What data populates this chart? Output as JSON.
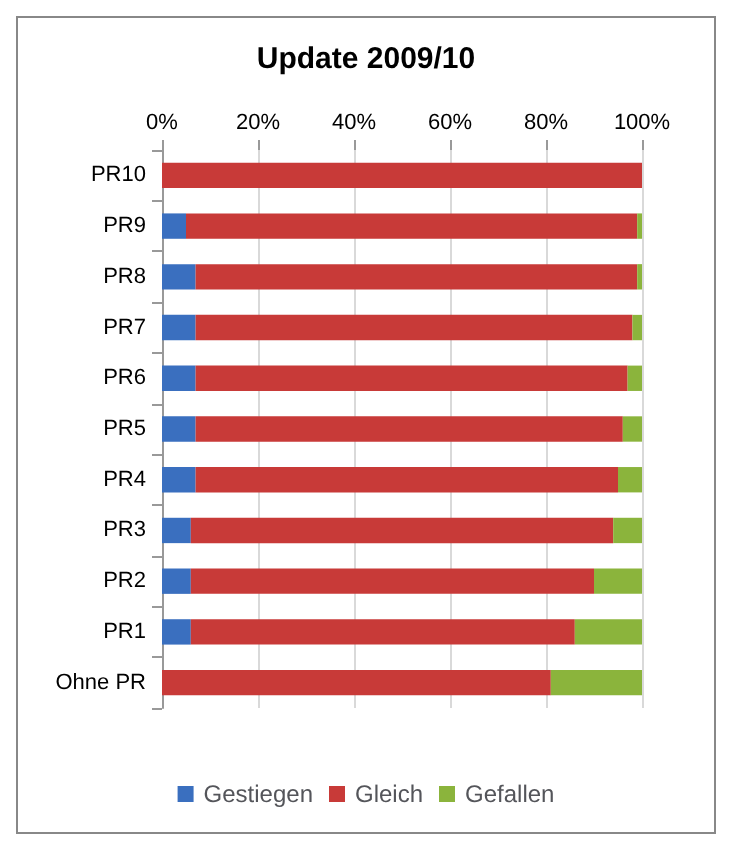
{
  "chart_data": {
    "type": "bar",
    "title": "Update 2009/10",
    "orientation": "horizontal",
    "stacked": true,
    "categories": [
      "PR10",
      "PR9",
      "PR8",
      "PR7",
      "PR6",
      "PR5",
      "PR4",
      "PR3",
      "PR2",
      "PR1",
      "Ohne PR"
    ],
    "series": [
      {
        "name": "Gestiegen",
        "color": "#3a6fbf",
        "values": [
          0,
          5,
          7,
          7,
          7,
          7,
          7,
          6,
          6,
          6,
          0
        ]
      },
      {
        "name": "Gleich",
        "color": "#c83a38",
        "values": [
          100,
          94,
          92,
          91,
          90,
          89,
          88,
          88,
          84,
          80,
          81
        ]
      },
      {
        "name": "Gefallen",
        "color": "#8bb43c",
        "values": [
          0,
          1,
          1,
          2,
          3,
          4,
          5,
          6,
          10,
          14,
          19
        ]
      }
    ],
    "xlim": [
      0,
      100
    ],
    "xticks": [
      {
        "value": 0,
        "label": "0%"
      },
      {
        "value": 20,
        "label": "20%"
      },
      {
        "value": 40,
        "label": "40%"
      },
      {
        "value": 60,
        "label": "60%"
      },
      {
        "value": 80,
        "label": "80%"
      },
      {
        "value": 100,
        "label": "100%"
      }
    ],
    "grid": "x",
    "legend": "bottom"
  }
}
